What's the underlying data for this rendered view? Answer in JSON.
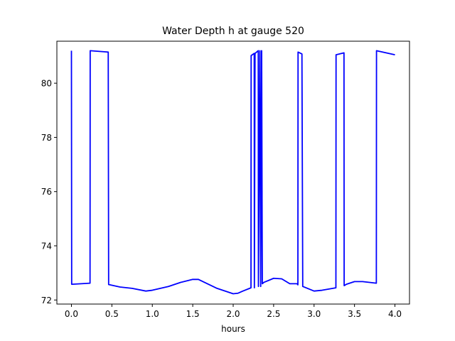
{
  "chart_data": {
    "type": "line",
    "title": "Water Depth h at gauge 520",
    "xlabel": "hours",
    "ylabel": "",
    "xlim": [
      -0.18,
      4.18
    ],
    "ylim": [
      71.85,
      81.55
    ],
    "xticks": [
      0.0,
      0.5,
      1.0,
      1.5,
      2.0,
      2.5,
      3.0,
      3.5,
      4.0
    ],
    "xtick_labels": [
      "0.0",
      "0.5",
      "1.0",
      "1.5",
      "2.0",
      "2.5",
      "3.0",
      "3.5",
      "4.0"
    ],
    "yticks": [
      72,
      74,
      76,
      78,
      80
    ],
    "ytick_labels": [
      "72",
      "74",
      "76",
      "78",
      "80"
    ],
    "grid": false,
    "series": [
      {
        "color": "#0000ff",
        "x": [
          0.0,
          0.003,
          0.01,
          0.23,
          0.232,
          0.45,
          0.455,
          0.46,
          0.6,
          0.75,
          0.92,
          1.0,
          1.2,
          1.35,
          1.5,
          1.57,
          1.8,
          2.0,
          2.06,
          2.12,
          2.22,
          2.222,
          2.26,
          2.262,
          2.27,
          2.31,
          2.312,
          2.33,
          2.34,
          2.35,
          2.352,
          2.36,
          2.38,
          2.5,
          2.6,
          2.7,
          2.79,
          2.8,
          2.802,
          2.85,
          2.86,
          3.0,
          3.1,
          3.27,
          3.272,
          3.37,
          3.372,
          3.4,
          3.5,
          3.6,
          3.77,
          3.772,
          4.0
        ],
        "y": [
          81.2,
          72.58,
          72.58,
          72.62,
          81.2,
          81.15,
          81.15,
          72.57,
          72.48,
          72.43,
          72.33,
          72.36,
          72.5,
          72.65,
          72.76,
          72.76,
          72.43,
          72.23,
          72.25,
          72.33,
          72.45,
          81.02,
          81.1,
          72.45,
          81.1,
          81.2,
          72.5,
          81.2,
          72.5,
          81.2,
          81.2,
          72.6,
          72.65,
          72.8,
          72.78,
          72.6,
          72.6,
          72.56,
          81.15,
          81.08,
          72.5,
          72.33,
          72.36,
          72.45,
          81.05,
          81.12,
          72.53,
          72.58,
          72.68,
          72.68,
          72.62,
          81.2,
          81.05
        ]
      }
    ]
  }
}
